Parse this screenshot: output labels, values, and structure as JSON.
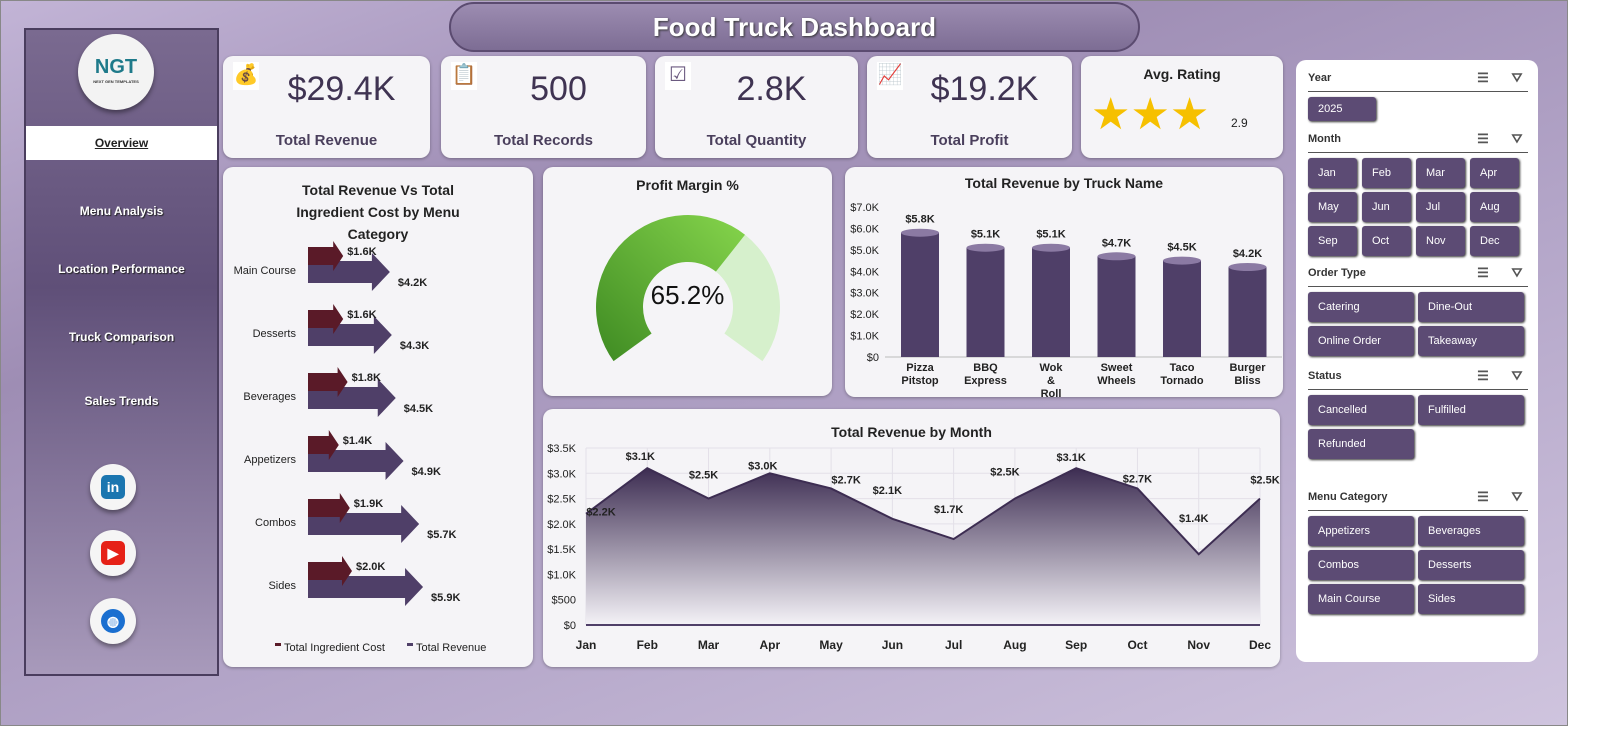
{
  "title": "Food Truck Dashboard",
  "logo": {
    "text": "NGT",
    "sub": "NEXT GEN TEMPLATES"
  },
  "nav": [
    "Overview",
    "Menu Analysis",
    "Location Performance",
    "Truck Comparison",
    "Sales Trends"
  ],
  "social": [
    "linkedin-icon",
    "youtube-icon",
    "globe-icon"
  ],
  "kpis": [
    {
      "value": "$29.4K",
      "label": "Total Revenue",
      "icon": "money-bag-icon"
    },
    {
      "value": "500",
      "label": "Total Records",
      "icon": "clipboard-icon"
    },
    {
      "value": "2.8K",
      "label": "Total Quantity",
      "icon": "checklist-icon"
    },
    {
      "value": "$19.2K",
      "label": "Total Profit",
      "icon": "growth-hand-icon"
    }
  ],
  "rating": {
    "label": "Avg. Rating",
    "value": "2.9",
    "stars": 2.9,
    "max": 5
  },
  "colors": {
    "accent": "#5c4b74",
    "ingredient": "#5a1a28",
    "revenue": "#4f3f68",
    "gauge": "#6cbf3a"
  },
  "chart_data": [
    {
      "type": "bar",
      "title": "Total Revenue Vs Total Ingredient Cost by Menu Category",
      "categories": [
        "Main Course",
        "Desserts",
        "Beverages",
        "Appetizers",
        "Combos",
        "Sides"
      ],
      "series": [
        {
          "name": "Total Ingredient Cost",
          "values": [
            1.6,
            1.6,
            1.8,
            1.4,
            1.9,
            2.0
          ],
          "labels": [
            "$1.6K",
            "$1.6K",
            "$1.8K",
            "$1.4K",
            "$1.9K",
            "$2.0K"
          ]
        },
        {
          "name": "Total Revenue",
          "values": [
            4.2,
            4.3,
            4.5,
            4.9,
            5.7,
            5.9
          ],
          "labels": [
            "$4.2K",
            "$4.3K",
            "$4.5K",
            "$4.9K",
            "$5.7K",
            "$5.9K"
          ]
        }
      ],
      "legend": "bottom"
    },
    {
      "type": "gauge",
      "title": "Profit Margin %",
      "value": 65.2,
      "label": "65.2%"
    },
    {
      "type": "bar",
      "title": "Total Revenue by Truck Name",
      "categories": [
        "Pizza Pitstop",
        "BBQ Express",
        "Wok & Roll",
        "Sweet Wheels",
        "Taco Tornado",
        "Burger Bliss"
      ],
      "values": [
        5.8,
        5.1,
        5.1,
        4.7,
        4.5,
        4.2
      ],
      "labels": [
        "$5.8K",
        "$5.1K",
        "$5.1K",
        "$4.7K",
        "$4.5K",
        "$4.2K"
      ],
      "ylim": [
        0,
        7
      ],
      "yticks": [
        "$0",
        "$1.0K",
        "$2.0K",
        "$3.0K",
        "$4.0K",
        "$5.0K",
        "$6.0K",
        "$7.0K"
      ]
    },
    {
      "type": "area",
      "title": "Total Revenue by Month",
      "categories": [
        "Jan",
        "Feb",
        "Mar",
        "Apr",
        "May",
        "Jun",
        "Jul",
        "Aug",
        "Sep",
        "Oct",
        "Nov",
        "Dec"
      ],
      "values": [
        2.2,
        3.1,
        2.5,
        3.0,
        2.7,
        2.1,
        1.7,
        2.5,
        3.1,
        2.7,
        1.4,
        2.5
      ],
      "labels": [
        "$2.2K",
        "$3.1K",
        "$2.5K",
        "$3.0K",
        "$2.7K",
        "$2.1K",
        "$1.7K",
        "$2.5K",
        "$3.1K",
        "$2.7K",
        "$1.4K",
        "$2.5K"
      ],
      "ylim": [
        0,
        3.5
      ],
      "yticks": [
        "$0",
        "$500",
        "$1.0K",
        "$1.5K",
        "$2.0K",
        "$2.5K",
        "$3.0K",
        "$3.5K"
      ],
      "grid": true
    }
  ],
  "slicers": [
    {
      "title": "Year",
      "items": [
        "2025"
      ]
    },
    {
      "title": "Month",
      "items": [
        "Jan",
        "Feb",
        "Mar",
        "Apr",
        "May",
        "Jun",
        "Jul",
        "Aug",
        "Sep",
        "Oct",
        "Nov",
        "Dec"
      ]
    },
    {
      "title": "Order Type",
      "items": [
        "Catering",
        "Dine-Out",
        "Online Order",
        "Takeaway"
      ]
    },
    {
      "title": "Status",
      "items": [
        "Cancelled",
        "Fulfilled",
        "Refunded"
      ]
    },
    {
      "title": "Menu Category",
      "items": [
        "Appetizers",
        "Beverages",
        "Combos",
        "Desserts",
        "Main Course",
        "Sides"
      ]
    }
  ]
}
